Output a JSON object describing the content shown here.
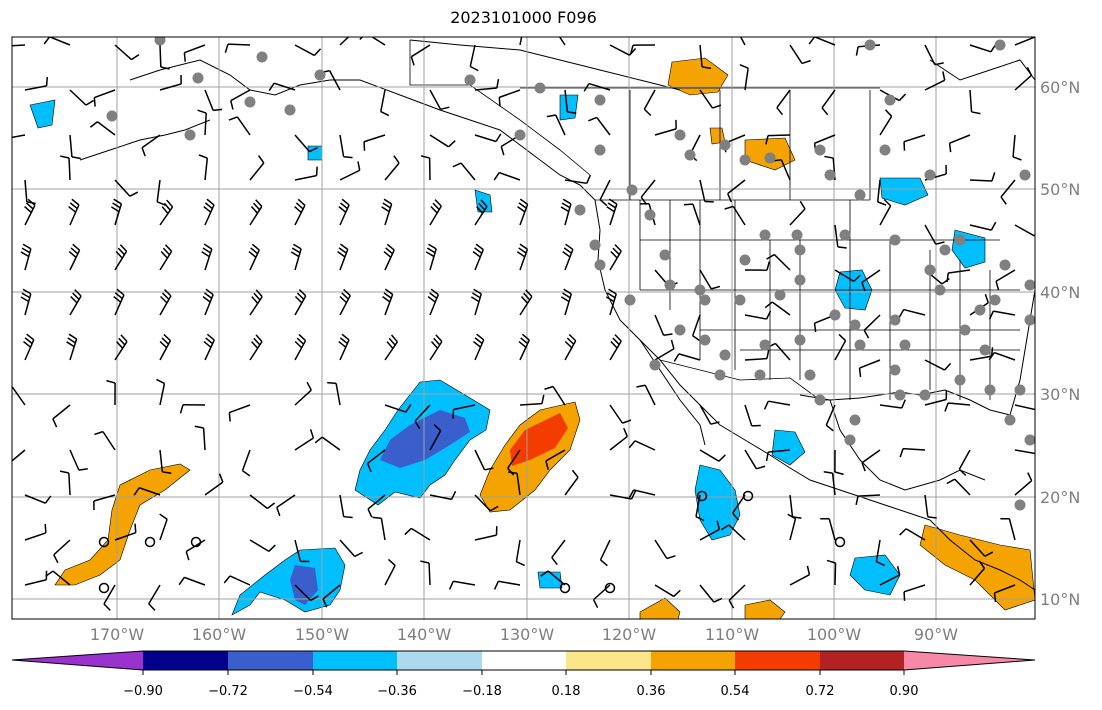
{
  "title": "2023101000 F096",
  "lon_labels": [
    "170°W",
    "160°W",
    "150°W",
    "140°W",
    "130°W",
    "120°W",
    "110°W",
    "100°W",
    "90°W"
  ],
  "lat_labels": [
    "60°N",
    "50°N",
    "40°N",
    "30°N",
    "20°N",
    "10°N"
  ],
  "colorbar": {
    "ticks": [
      "−0.90",
      "−0.72",
      "−0.54",
      "−0.36",
      "−0.18",
      "0.18",
      "0.36",
      "0.54",
      "0.72",
      "0.90"
    ],
    "colors": [
      "#9a32cd",
      "#00008b",
      "#3a5fcd",
      "#00bfff",
      "#add8f0",
      "#ffffff",
      "#fde68a",
      "#f5a300",
      "#f53c00",
      "#b22222",
      "#f788a8"
    ]
  },
  "wind_barb_color": "#000000",
  "station_marker_color": "#808080",
  "coastline_color": "#000000",
  "gridline_color": "#a0a0a0"
}
